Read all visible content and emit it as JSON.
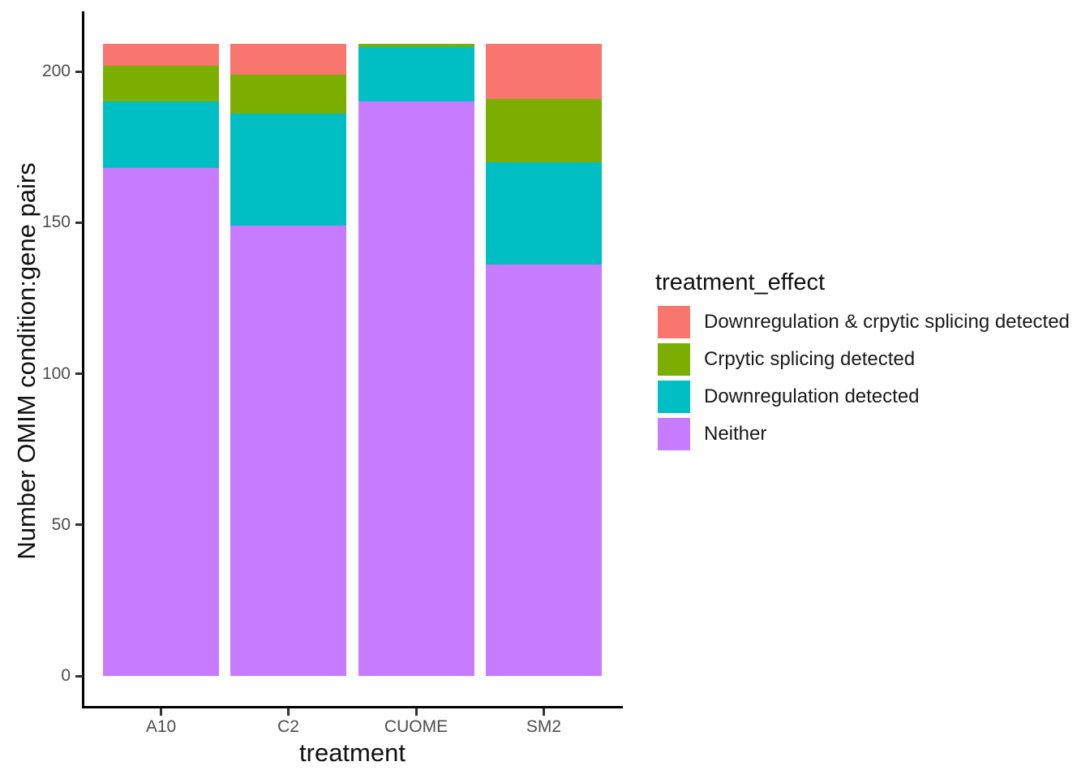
{
  "chart_data": {
    "type": "bar",
    "stacked": true,
    "title": "",
    "xlabel": "treatment",
    "ylabel": "Number OMIM condition:gene pairs",
    "categories": [
      "A10",
      "C2",
      "CUOME",
      "SM2"
    ],
    "series": [
      {
        "name": "Downregulation & crpytic splicing detected",
        "color": "#F8766D",
        "values": [
          7,
          10,
          0,
          18
        ]
      },
      {
        "name": "Crpytic splicing detected",
        "color": "#7CAE00",
        "values": [
          12,
          13,
          1,
          21
        ]
      },
      {
        "name": "Downregulation detected",
        "color": "#00BFC4",
        "values": [
          22,
          37,
          18,
          34
        ]
      },
      {
        "name": "Neither",
        "color": "#C77CFF",
        "values": [
          168,
          149,
          190,
          136
        ]
      }
    ],
    "stack_order_bottom_to_top": [
      "Neither",
      "Downregulation detected",
      "Crpytic splicing detected",
      "Downregulation & crpytic splicing detected"
    ],
    "totals": [
      209,
      209,
      209,
      209
    ],
    "yticks": [
      0,
      50,
      100,
      150,
      200
    ],
    "ylim": [
      0,
      219
    ],
    "grid": false,
    "legend": {
      "title": "treatment_effect",
      "position": "right"
    },
    "colors": {
      "axis_line": "#000000",
      "tick_mark": "#333333",
      "tick_label": "#4d4d4d",
      "axis_title": "#111111",
      "background": "#ffffff"
    }
  }
}
